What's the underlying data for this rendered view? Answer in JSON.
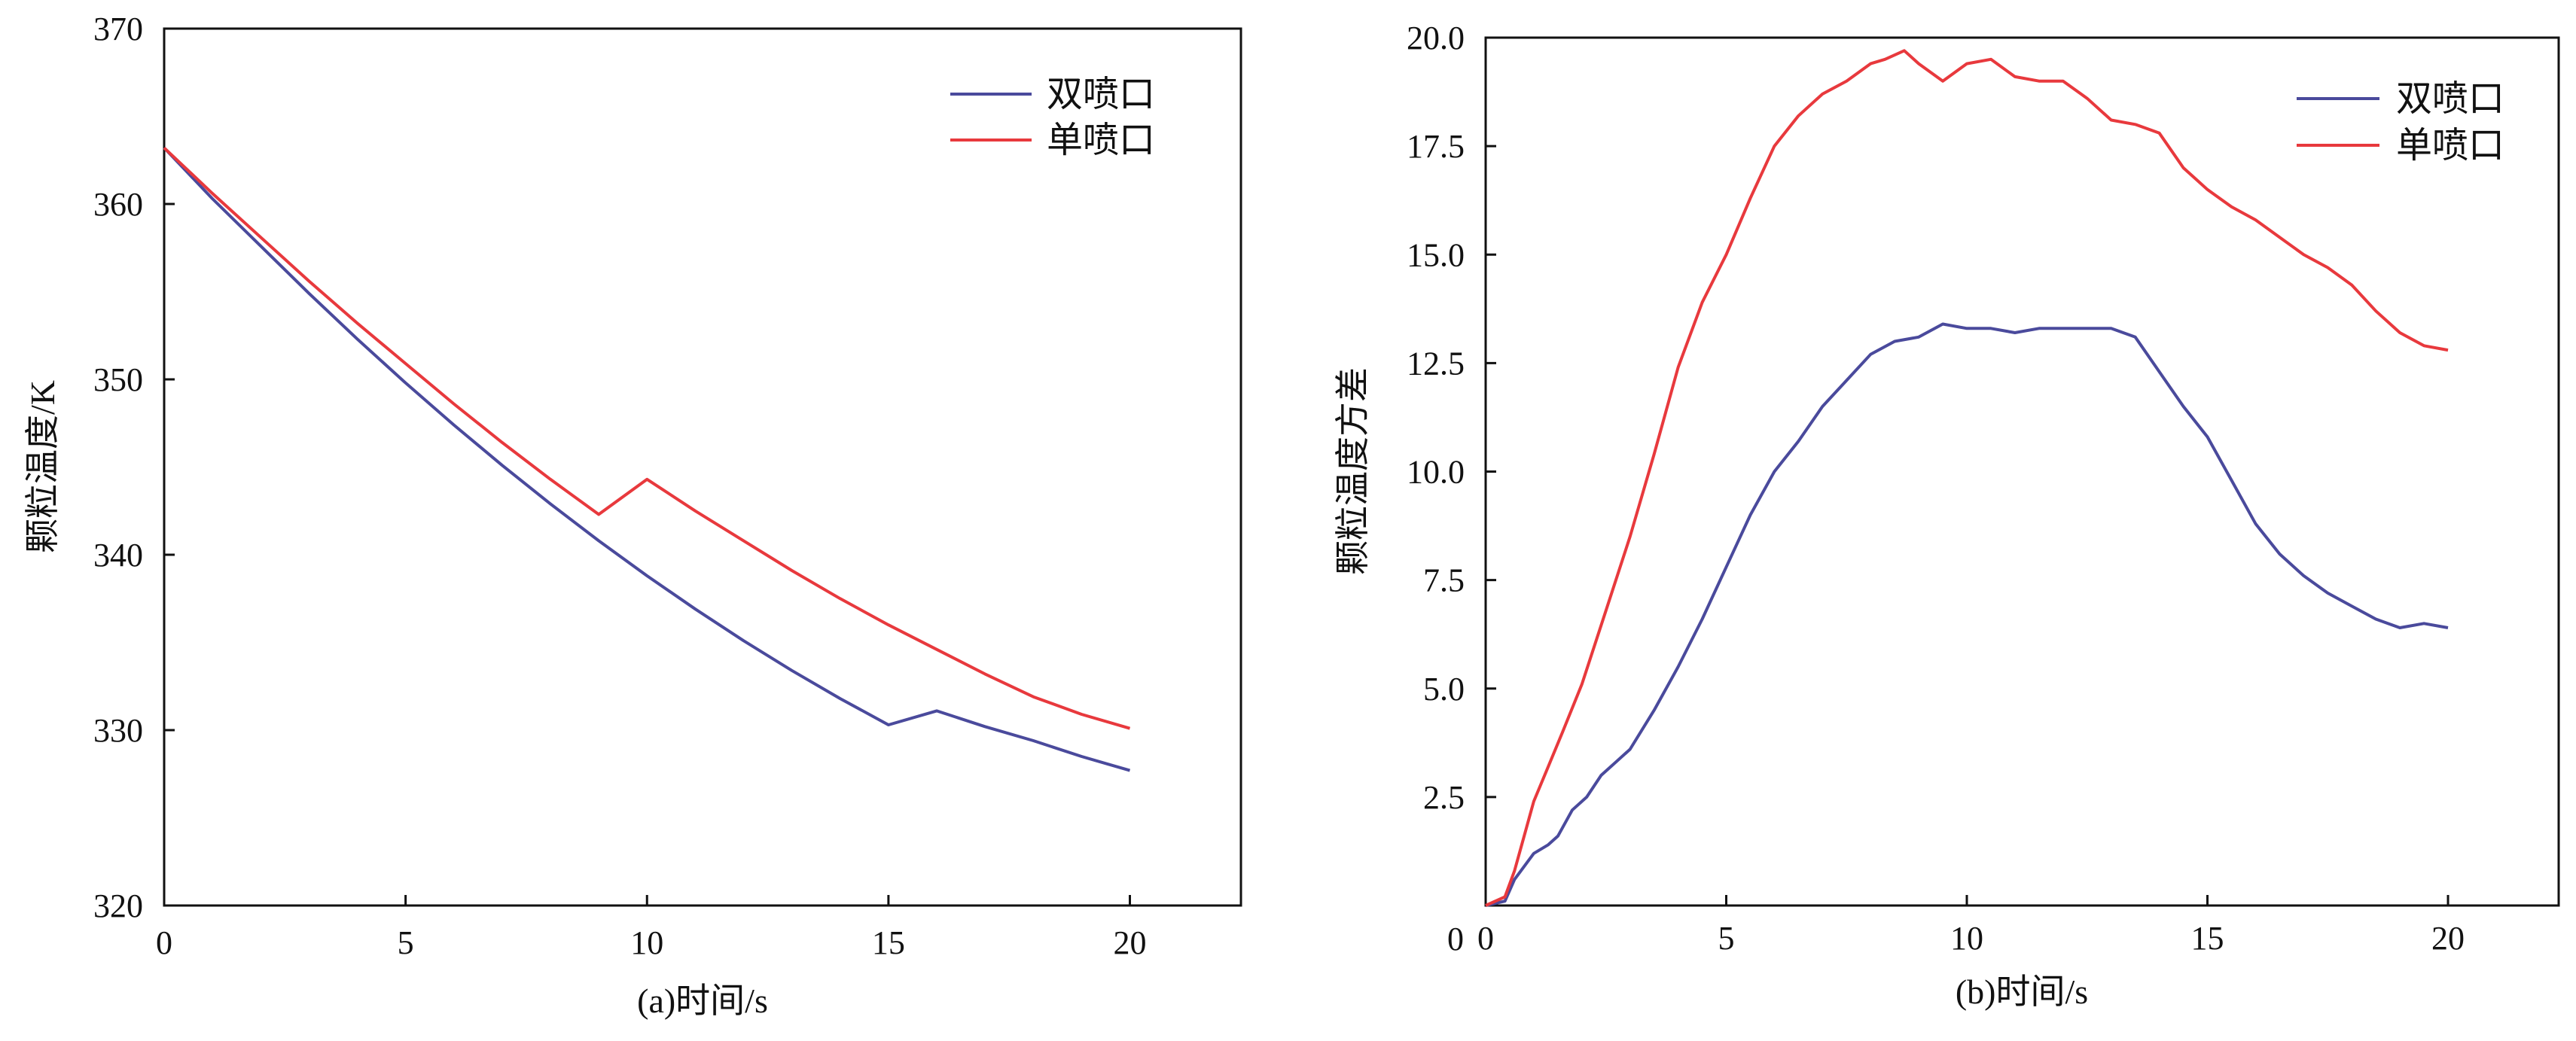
{
  "chart_data": [
    {
      "type": "line",
      "title": "",
      "xlabel": "(a)时间/s",
      "ylabel": "颗粒温度/K",
      "xlim": [
        0,
        22.3
      ],
      "ylim": [
        320,
        370
      ],
      "xticks": [
        0,
        5,
        10,
        15,
        20
      ],
      "yticks": [
        320,
        330,
        340,
        350,
        360,
        370
      ],
      "grid": false,
      "legend_position": "top-right",
      "series": [
        {
          "name": "双喷口",
          "color": "#4a4a9c",
          "x": [
            0,
            1,
            2,
            3,
            4,
            5,
            6,
            7,
            8,
            9,
            10,
            11,
            12,
            13,
            14,
            15,
            16,
            17,
            18,
            19,
            20
          ],
          "y": [
            363.2,
            360.3,
            357.6,
            354.9,
            352.3,
            349.8,
            347.4,
            345.1,
            342.9,
            340.8,
            338.8,
            336.9,
            335.1,
            333.4,
            331.8,
            330.3,
            331.1,
            330.2,
            329.4,
            328.5,
            327.7
          ]
        },
        {
          "name": "单喷口",
          "color": "#e8393d",
          "x": [
            0,
            1,
            2,
            3,
            4,
            5,
            6,
            7,
            8,
            9,
            10,
            11,
            12,
            13,
            14,
            15,
            16,
            17,
            18,
            19,
            20
          ],
          "y": [
            363.2,
            360.6,
            358.1,
            355.6,
            353.2,
            350.9,
            348.6,
            346.4,
            344.3,
            342.3,
            344.3,
            342.5,
            340.8,
            339.1,
            337.5,
            336.0,
            334.6,
            333.2,
            331.9,
            330.9,
            330.1
          ]
        }
      ]
    },
    {
      "type": "line",
      "title": "",
      "xlabel": "(b)时间/s",
      "ylabel": "颗粒温度方差",
      "xlim": [
        0,
        22.3
      ],
      "ylim": [
        0,
        20
      ],
      "xticks": [
        0,
        5,
        10,
        15,
        20
      ],
      "yticks": [
        2.5,
        5.0,
        7.5,
        10.0,
        12.5,
        15.0,
        17.5,
        20.0
      ],
      "ytick_labels": [
        "2.5",
        "5.0",
        "7.5",
        "10.0",
        "12.5",
        "15.0",
        "17.5",
        "20.0"
      ],
      "zero_label": "0",
      "grid": false,
      "legend_position": "top-right",
      "series": [
        {
          "name": "双喷口",
          "color": "#4a4a9c",
          "x": [
            0,
            0.4,
            0.6,
            1.0,
            1.3,
            1.5,
            1.8,
            2.1,
            2.4,
            2.7,
            3.0,
            3.5,
            4.0,
            4.5,
            5.0,
            5.5,
            6.0,
            6.5,
            7.0,
            7.5,
            8.0,
            8.5,
            9.0,
            9.5,
            10.0,
            10.5,
            11.0,
            11.5,
            12.0,
            12.5,
            13.0,
            13.5,
            14.0,
            14.5,
            15.0,
            15.5,
            16.0,
            16.5,
            17.0,
            17.5,
            18.0,
            18.5,
            19.0,
            19.5,
            20.0
          ],
          "y": [
            0,
            0.1,
            0.6,
            1.2,
            1.4,
            1.6,
            2.2,
            2.5,
            3.0,
            3.3,
            3.6,
            4.5,
            5.5,
            6.6,
            7.8,
            9.0,
            10.0,
            10.7,
            11.5,
            12.1,
            12.7,
            13.0,
            13.1,
            13.4,
            13.3,
            13.3,
            13.2,
            13.3,
            13.3,
            13.3,
            13.3,
            13.1,
            12.3,
            11.5,
            10.8,
            9.8,
            8.8,
            8.1,
            7.6,
            7.2,
            6.9,
            6.6,
            6.4,
            6.5,
            6.4
          ]
        },
        {
          "name": "单喷口",
          "color": "#e8393d",
          "x": [
            0,
            0.4,
            0.6,
            0.8,
            1.0,
            1.3,
            1.6,
            2.0,
            2.5,
            3.0,
            3.5,
            4.0,
            4.5,
            5.0,
            5.5,
            6.0,
            6.5,
            7.0,
            7.5,
            8.0,
            8.3,
            8.7,
            9.0,
            9.5,
            10.0,
            10.5,
            11.0,
            11.5,
            12.0,
            12.5,
            13.0,
            13.5,
            14.0,
            14.5,
            15.0,
            15.5,
            16.0,
            16.5,
            17.0,
            17.5,
            18.0,
            18.5,
            19.0,
            19.5,
            20.0
          ],
          "y": [
            0,
            0.2,
            0.8,
            1.6,
            2.4,
            3.2,
            4.0,
            5.1,
            6.8,
            8.5,
            10.4,
            12.4,
            13.9,
            15.0,
            16.3,
            17.5,
            18.2,
            18.7,
            19.0,
            19.4,
            19.5,
            19.7,
            19.4,
            19.0,
            19.4,
            19.5,
            19.1,
            19.0,
            19.0,
            18.6,
            18.1,
            18.0,
            17.8,
            17.0,
            16.5,
            16.1,
            15.8,
            15.4,
            15.0,
            14.7,
            14.3,
            13.7,
            13.2,
            12.9,
            12.8
          ]
        }
      ]
    }
  ]
}
